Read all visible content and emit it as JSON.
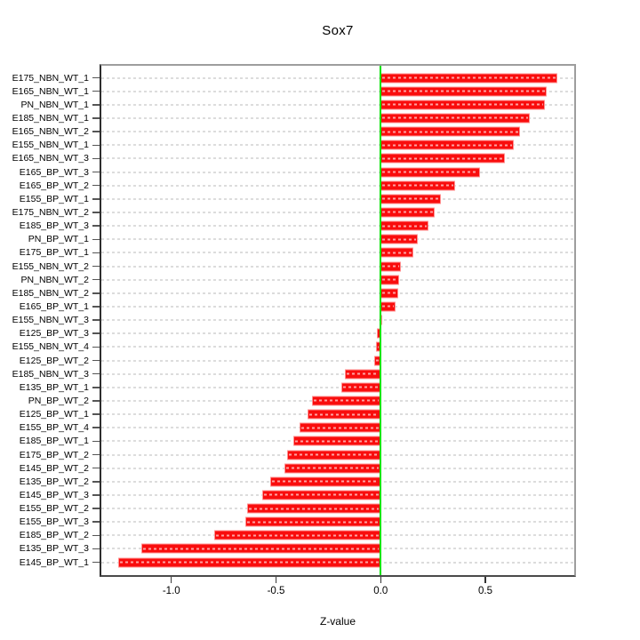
{
  "title": "Sox7",
  "chart_data": {
    "type": "bar",
    "orientation": "horizontal",
    "title": "Sox7",
    "xlabel": "Z-value",
    "categories": [
      "E175_NBN_WT_1",
      "E165_NBN_WT_1",
      "PN_NBN_WT_1",
      "E185_NBN_WT_1",
      "E165_NBN_WT_2",
      "E155_NBN_WT_1",
      "E165_NBN_WT_3",
      "E165_BP_WT_3",
      "E165_BP_WT_2",
      "E155_BP_WT_1",
      "E175_NBN_WT_2",
      "E185_BP_WT_3",
      "PN_BP_WT_1",
      "E175_BP_WT_1",
      "E155_NBN_WT_2",
      "PN_NBN_WT_2",
      "E185_NBN_WT_2",
      "E165_BP_WT_1",
      "E155_NBN_WT_3",
      "E125_BP_WT_3",
      "E155_NBN_WT_4",
      "E125_BP_WT_2",
      "E185_NBN_WT_3",
      "E135_BP_WT_1",
      "PN_BP_WT_2",
      "E125_BP_WT_1",
      "E155_BP_WT_4",
      "E185_BP_WT_1",
      "E175_BP_WT_2",
      "E145_BP_WT_2",
      "E135_BP_WT_2",
      "E145_BP_WT_3",
      "E155_BP_WT_2",
      "E155_BP_WT_3",
      "E185_BP_WT_2",
      "E135_BP_WT_3",
      "E145_BP_WT_1"
    ],
    "values": [
      0.85,
      0.8,
      0.79,
      0.72,
      0.67,
      0.64,
      0.6,
      0.48,
      0.36,
      0.29,
      0.26,
      0.23,
      0.18,
      0.16,
      0.1,
      0.09,
      0.085,
      0.075,
      0.01,
      -0.016,
      -0.022,
      -0.028,
      -0.17,
      -0.19,
      -0.33,
      -0.35,
      -0.39,
      -0.42,
      -0.45,
      -0.46,
      -0.53,
      -0.57,
      -0.64,
      -0.65,
      -0.8,
      -1.15,
      -1.26
    ],
    "xticks": [
      -1.0,
      -0.5,
      0.0,
      0.5
    ],
    "xlim": [
      -1.343,
      0.933
    ],
    "zero_line": 0.0,
    "grid": "dashed horizontal gridline per row",
    "legend": "none",
    "colors": {
      "bar": "#f90d0d",
      "bar_border": "#ff9090",
      "gridline": "#dcdcdc",
      "zero_line": "#00e300",
      "axis_text": "#000000",
      "box_border": "#9d9d9d"
    }
  }
}
